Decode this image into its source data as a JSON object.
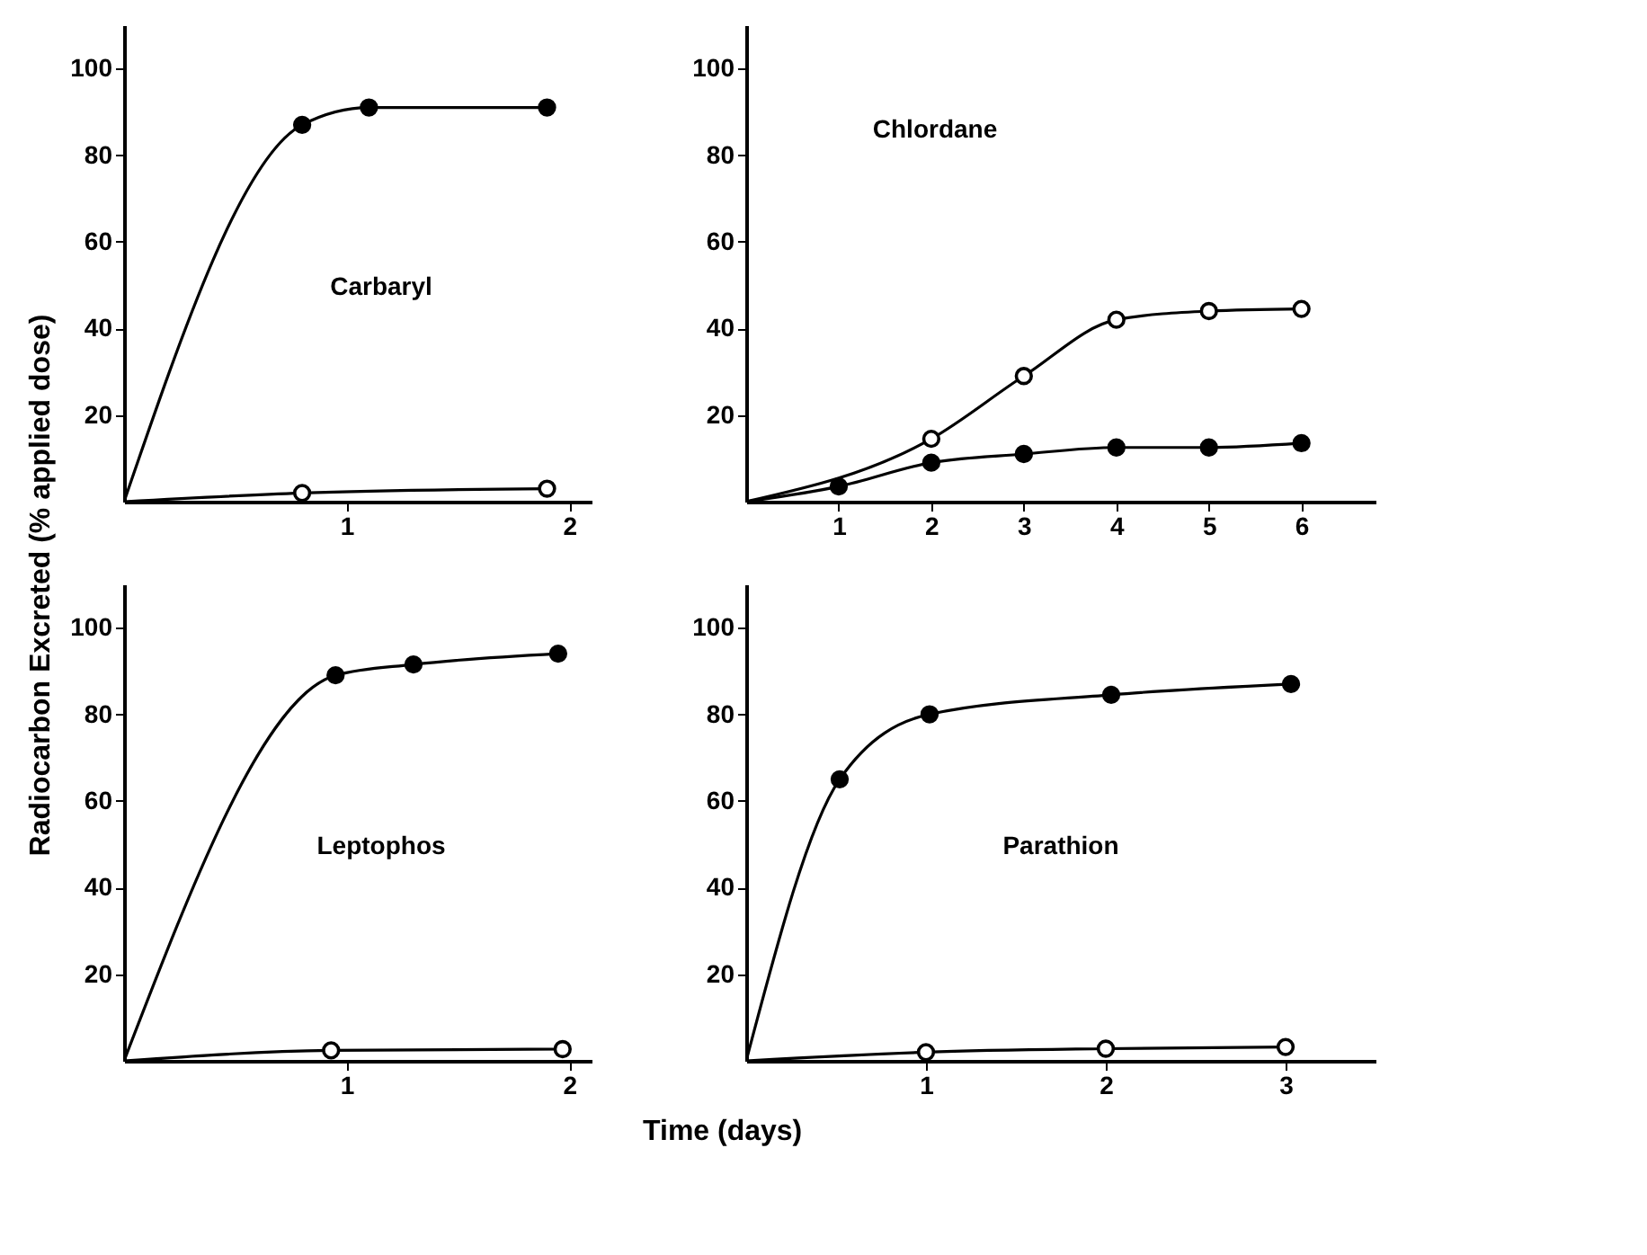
{
  "chart_data": [
    {
      "type": "scatter",
      "xlabel": "Time (days)",
      "ylabel": "Radiocarbon  Excreted  (% applied dose)",
      "annotations": [
        "Carbaryl"
      ],
      "marker": "circle",
      "xlim": [
        0,
        2.1
      ],
      "ylim": [
        0,
        110
      ],
      "xticks": [
        1,
        2
      ],
      "yticks": [
        20,
        40,
        60,
        80,
        100
      ],
      "series": [
        {
          "type": "line",
          "marker": "none",
          "color": "#000000",
          "x": [
            0,
            0.8,
            1.1,
            1.9
          ],
          "values": [
            0,
            87,
            91,
            91
          ]
        },
        {
          "color": "#000000",
          "x": [
            0.8,
            1.1,
            1.9
          ],
          "values": [
            87,
            91,
            91
          ]
        },
        {
          "type": "line",
          "marker": "none",
          "color": "#000000",
          "x": [
            0,
            0.8,
            1.9
          ],
          "values": [
            0,
            2,
            3
          ]
        },
        {
          "color": "#000000",
          "x": [
            0.8,
            1.9
          ],
          "values": [
            2,
            3
          ]
        }
      ]
    },
    {
      "type": "scatter",
      "annotations": [
        "Chlordane"
      ],
      "marker": "circle",
      "xlim": [
        0,
        6.8
      ],
      "ylim": [
        0,
        110
      ],
      "xticks": [
        1,
        2,
        3,
        4,
        5,
        6
      ],
      "yticks": [
        20,
        40,
        60,
        80,
        100
      ],
      "series": [
        {
          "type": "line",
          "marker": "none",
          "color": "#000000",
          "x": [
            0,
            1,
            2,
            3,
            4,
            5,
            6
          ],
          "values": [
            0,
            3.5,
            9,
            11,
            12.5,
            12.5,
            13.5
          ]
        },
        {
          "color": "#000000",
          "x": [
            1,
            2,
            3,
            4,
            5,
            6
          ],
          "values": [
            3.5,
            9,
            11,
            12.5,
            12.5,
            13.5
          ]
        },
        {
          "type": "line",
          "marker": "none",
          "color": "#000000",
          "x": [
            0,
            2,
            3,
            4,
            5,
            6
          ],
          "values": [
            0,
            14.5,
            29,
            42,
            44,
            44.5
          ]
        },
        {
          "color": "#000000",
          "x": [
            2,
            3,
            4,
            5,
            6
          ],
          "values": [
            14.5,
            29,
            42,
            44,
            44.5
          ]
        }
      ]
    },
    {
      "type": "scatter",
      "annotations": [
        "Leptophos"
      ],
      "marker": "circle",
      "xlim": [
        0,
        2.1
      ],
      "ylim": [
        0,
        110
      ],
      "xticks": [
        1,
        2
      ],
      "yticks": [
        20,
        40,
        60,
        80,
        100
      ],
      "series": [
        {
          "type": "line",
          "marker": "none",
          "color": "#000000",
          "x": [
            0,
            0.95,
            1.3,
            1.95
          ],
          "values": [
            0,
            89,
            91.5,
            94
          ]
        },
        {
          "color": "#000000",
          "x": [
            0.95,
            1.3,
            1.95
          ],
          "values": [
            89,
            91.5,
            94
          ]
        },
        {
          "type": "line",
          "marker": "none",
          "color": "#000000",
          "x": [
            0,
            0.93,
            1.97
          ],
          "values": [
            0,
            2.4,
            2.7
          ]
        },
        {
          "color": "#000000",
          "x": [
            0.93,
            1.97
          ],
          "values": [
            2.4,
            2.7
          ]
        }
      ]
    },
    {
      "type": "scatter",
      "annotations": [
        "Parathion"
      ],
      "marker": "circle",
      "xlim": [
        0,
        3.5
      ],
      "ylim": [
        0,
        110
      ],
      "xticks": [
        1,
        2,
        3
      ],
      "yticks": [
        20,
        40,
        60,
        80,
        100
      ],
      "series": [
        {
          "type": "line",
          "marker": "none",
          "color": "#000000",
          "x": [
            0,
            0.52,
            1.02,
            2.03,
            3.03
          ],
          "values": [
            0,
            65,
            80,
            84.5,
            87
          ]
        },
        {
          "color": "#000000",
          "x": [
            0.52,
            1.02,
            2.03,
            3.03
          ],
          "values": [
            65,
            80,
            84.5,
            87
          ]
        },
        {
          "type": "line",
          "marker": "none",
          "color": "#000000",
          "x": [
            0,
            1,
            2,
            3
          ],
          "values": [
            0,
            2,
            2.8,
            3.2
          ]
        },
        {
          "color": "#000000",
          "x": [
            1,
            2,
            3
          ],
          "values": [
            2,
            2.8,
            3.2
          ]
        }
      ]
    }
  ]
}
